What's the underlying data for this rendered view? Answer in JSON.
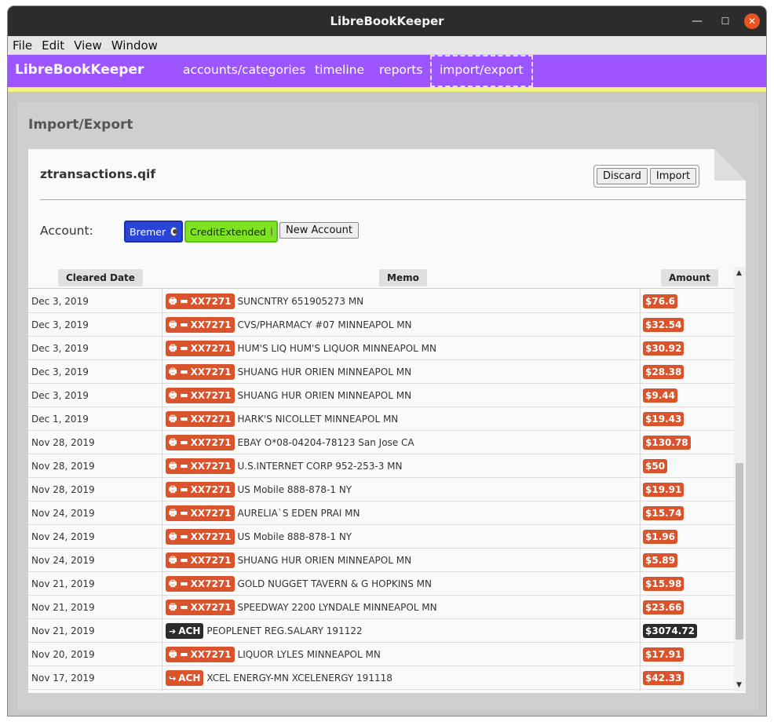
{
  "window": {
    "title": "LibreBookKeeper"
  },
  "menu": [
    "File",
    "Edit",
    "View",
    "Window"
  ],
  "nav": {
    "brand": "LibreBookKeeper",
    "links": [
      "accounts/categories",
      "timeline",
      "reports",
      "import/export"
    ],
    "active": "import/export"
  },
  "page": {
    "title": "Import/Export"
  },
  "import": {
    "filename": "ztransactions.qif",
    "discard_label": "Discard",
    "import_label": "Import",
    "account_label": "Account:",
    "accounts": [
      {
        "name": "Bremer",
        "selected": true,
        "color": "#2b44d6"
      },
      {
        "name": "CreditExtended",
        "selected": false,
        "color": "#7ee321"
      }
    ],
    "new_account_label": "New Account"
  },
  "table": {
    "headers": [
      "Cleared Date",
      "Memo",
      "Amount"
    ],
    "rows": [
      {
        "date": "Dec 3, 2019",
        "tag": "XX7271",
        "tagType": "card",
        "memo": "SUNCNTRY 651905273 MN",
        "amount": "$76.6",
        "sign": "neg"
      },
      {
        "date": "Dec 3, 2019",
        "tag": "XX7271",
        "tagType": "card",
        "memo": "CVS/PHARMACY #07 MINNEAPOL MN",
        "amount": "$32.54",
        "sign": "neg"
      },
      {
        "date": "Dec 3, 2019",
        "tag": "XX7271",
        "tagType": "card",
        "memo": "HUM'S LIQ HUM'S LIQUOR MINNEAPOL MN",
        "amount": "$30.92",
        "sign": "neg"
      },
      {
        "date": "Dec 3, 2019",
        "tag": "XX7271",
        "tagType": "card",
        "memo": "SHUANG HUR ORIEN MINNEAPOL MN",
        "amount": "$28.38",
        "sign": "neg"
      },
      {
        "date": "Dec 3, 2019",
        "tag": "XX7271",
        "tagType": "card",
        "memo": "SHUANG HUR ORIEN MINNEAPOL MN",
        "amount": "$9.44",
        "sign": "neg"
      },
      {
        "date": "Dec 1, 2019",
        "tag": "XX7271",
        "tagType": "card",
        "memo": "HARK'S NICOLLET MINNEAPOL MN",
        "amount": "$19.43",
        "sign": "neg"
      },
      {
        "date": "Nov 28, 2019",
        "tag": "XX7271",
        "tagType": "card",
        "memo": "EBAY O*08-04204-78123 San Jose CA",
        "amount": "$130.78",
        "sign": "neg"
      },
      {
        "date": "Nov 28, 2019",
        "tag": "XX7271",
        "tagType": "card",
        "memo": "U.S.INTERNET CORP 952-253-3 MN",
        "amount": "$50",
        "sign": "neg"
      },
      {
        "date": "Nov 28, 2019",
        "tag": "XX7271",
        "tagType": "card",
        "memo": "US Mobile 888-878-1 NY",
        "amount": "$19.91",
        "sign": "neg"
      },
      {
        "date": "Nov 24, 2019",
        "tag": "XX7271",
        "tagType": "card",
        "memo": "AURELIA`S EDEN PRAI MN",
        "amount": "$15.74",
        "sign": "neg"
      },
      {
        "date": "Nov 24, 2019",
        "tag": "XX7271",
        "tagType": "card",
        "memo": "US Mobile 888-878-1 NY",
        "amount": "$1.96",
        "sign": "neg"
      },
      {
        "date": "Nov 24, 2019",
        "tag": "XX7271",
        "tagType": "card",
        "memo": "SHUANG HUR ORIEN MINNEAPOL MN",
        "amount": "$5.89",
        "sign": "neg"
      },
      {
        "date": "Nov 21, 2019",
        "tag": "XX7271",
        "tagType": "card",
        "memo": "GOLD NUGGET TAVERN & G HOPKINS MN",
        "amount": "$15.98",
        "sign": "neg"
      },
      {
        "date": "Nov 21, 2019",
        "tag": "XX7271",
        "tagType": "card",
        "memo": "SPEEDWAY 2200 LYNDALE MINNEAPOL MN",
        "amount": "$23.66",
        "sign": "neg"
      },
      {
        "date": "Nov 21, 2019",
        "tag": "ACH",
        "tagType": "ach-in",
        "memo": "PEOPLENET REG.SALARY 191122",
        "amount": "$3074.72",
        "sign": "pos"
      },
      {
        "date": "Nov 20, 2019",
        "tag": "XX7271",
        "tagType": "card",
        "memo": "LIQUOR LYLES MINNEAPOL MN",
        "amount": "$17.91",
        "sign": "neg"
      },
      {
        "date": "Nov 17, 2019",
        "tag": "ACH",
        "tagType": "ach-out",
        "memo": "XCEL ENERGY-MN XCELENERGY 191118",
        "amount": "$42.33",
        "sign": "neg"
      }
    ]
  },
  "colors": {
    "nav": "#9d55ff",
    "expense": "#d9532c",
    "income": "#2b2b2b",
    "accent_strip": "#f3f380"
  }
}
